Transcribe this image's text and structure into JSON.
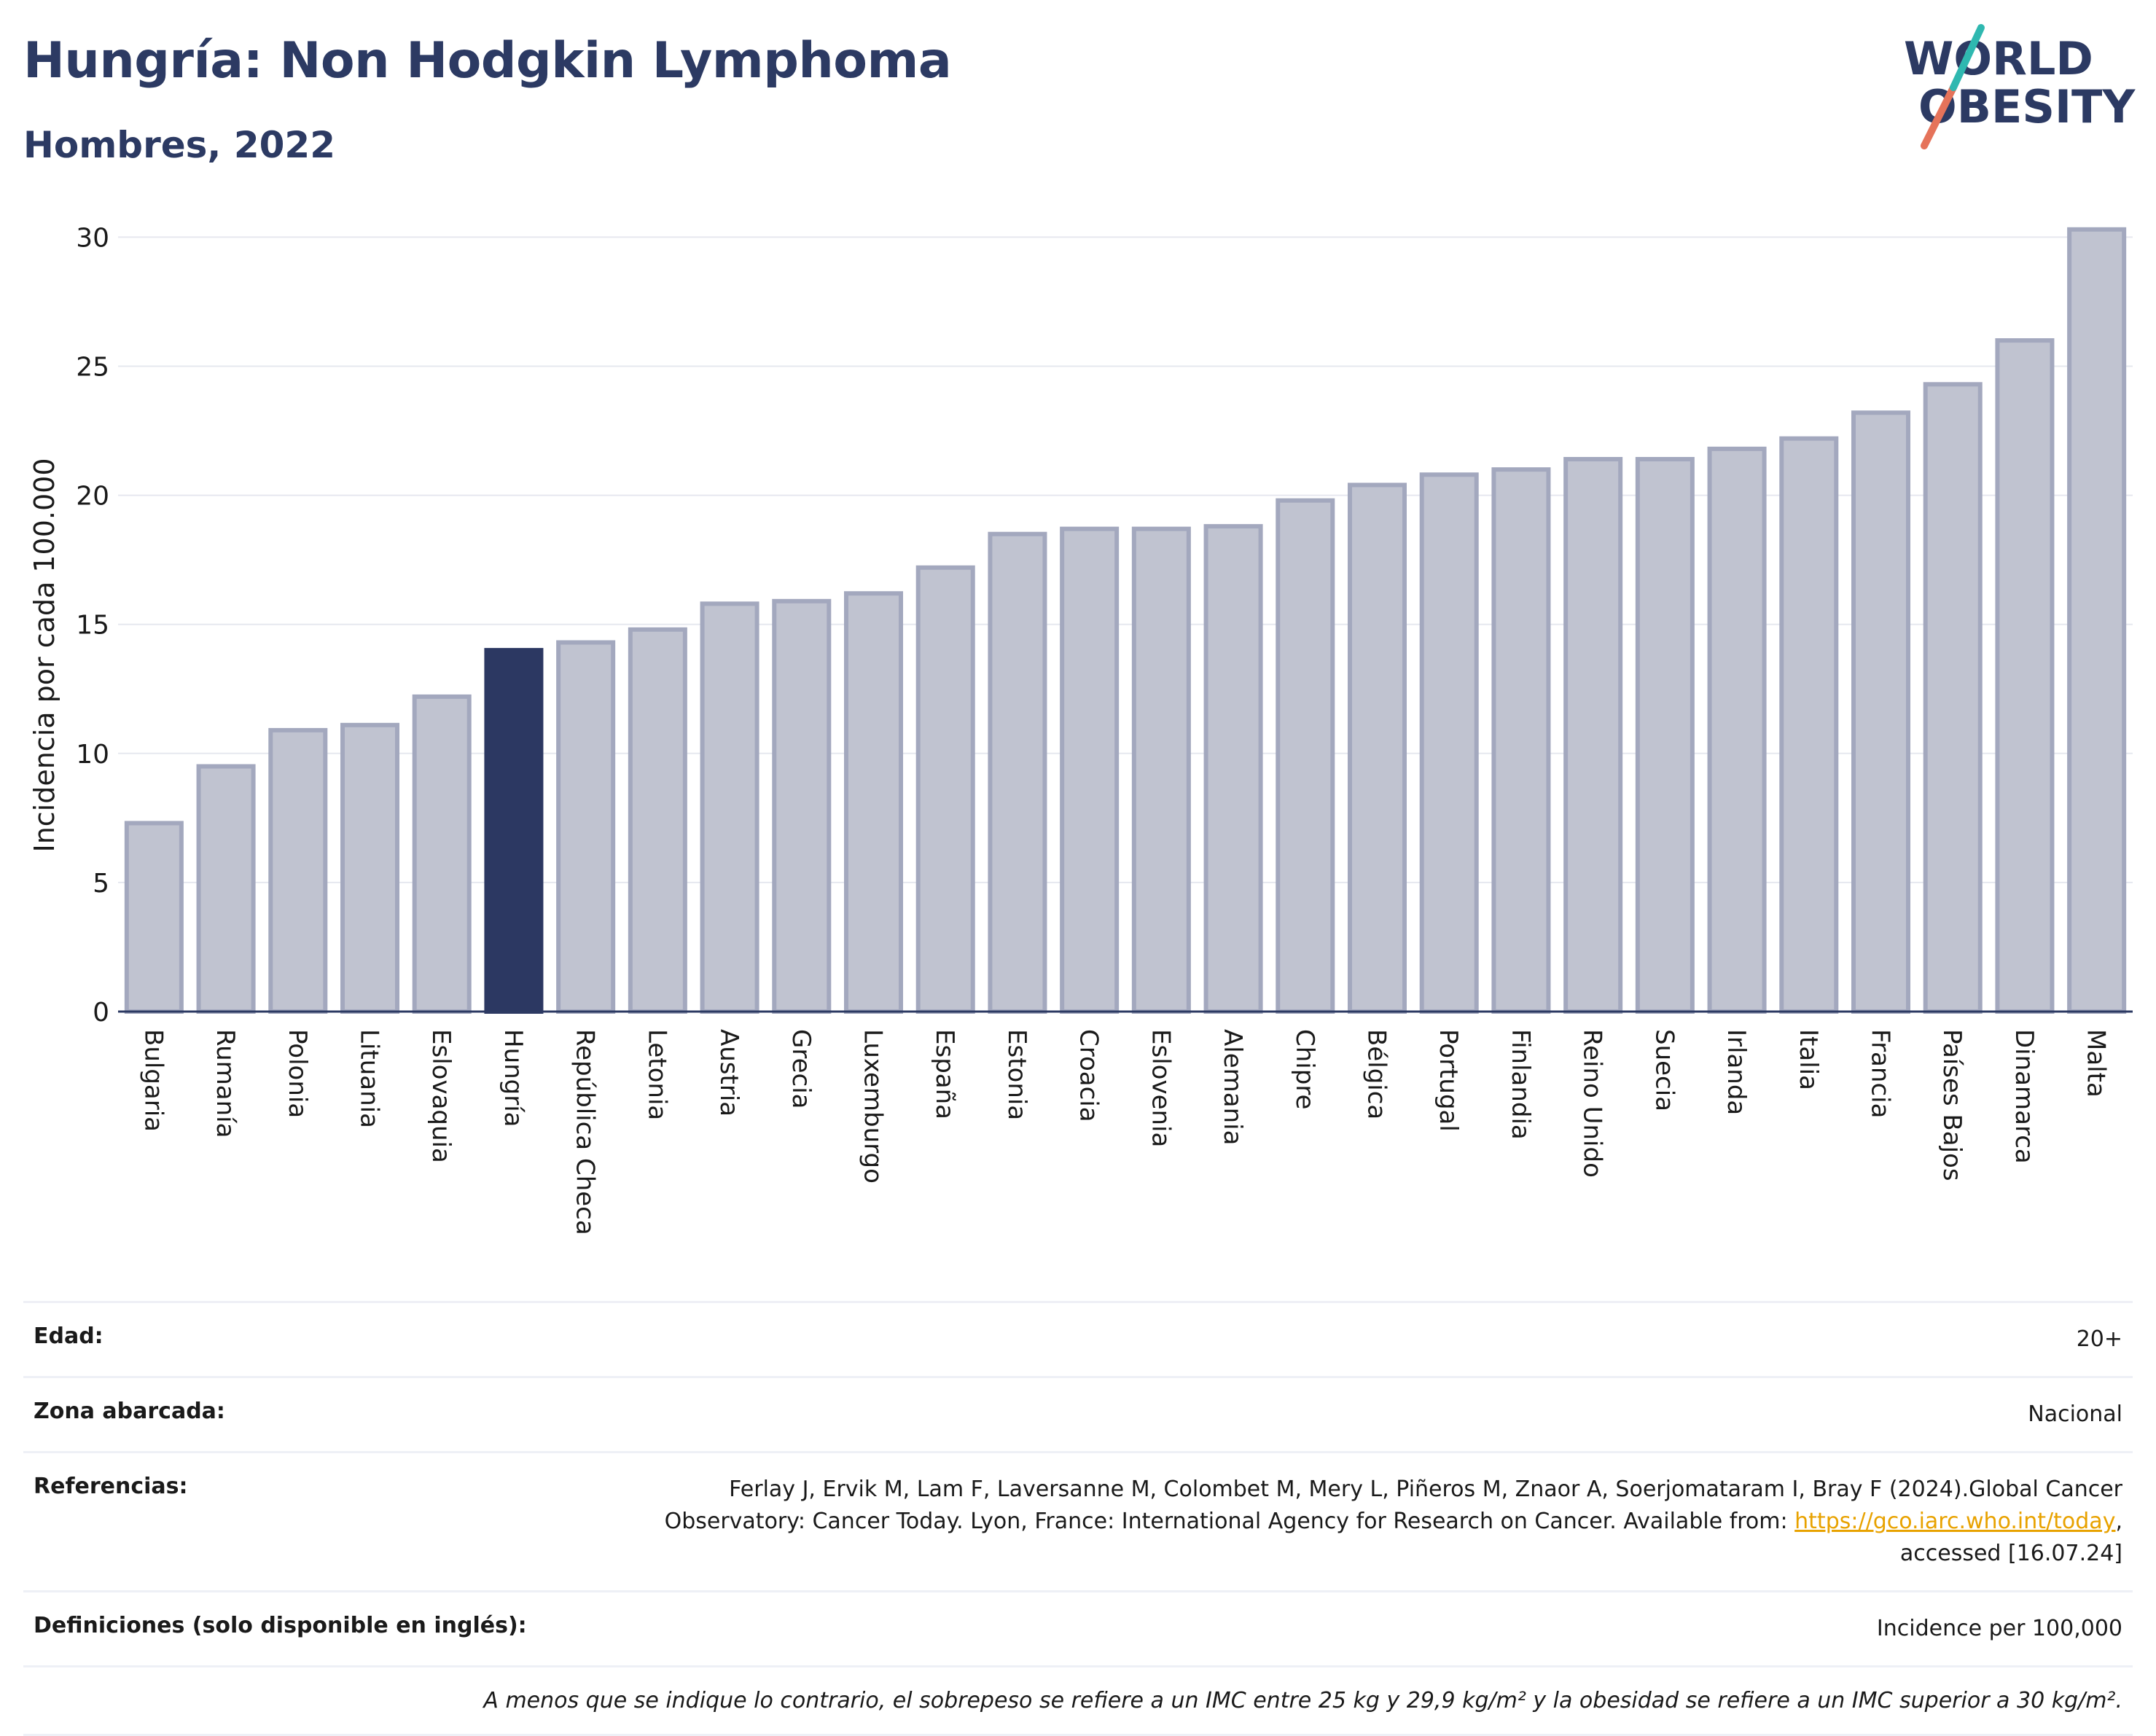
{
  "header": {
    "title": "Hungría: Non Hodgkin Lymphoma",
    "subtitle": "Hombres, 2022"
  },
  "logo": {
    "line1": "WORLD",
    "line2": "OBESITY"
  },
  "colors": {
    "highlight": "#2c3862",
    "bar": "#c0c3d0",
    "bar_stroke": "#a3a8be",
    "title": "#2c3a63"
  },
  "chart_data": {
    "type": "bar",
    "ylabel": "Incidencia por cada 100.000",
    "ylim": [
      0,
      31
    ],
    "yticks": [
      0,
      5,
      10,
      15,
      20,
      25,
      30
    ],
    "grid": true,
    "highlight": "Hungría",
    "categories": [
      "Bulgaria",
      "Rumanía",
      "Polonia",
      "Lituania",
      "Eslovaquia",
      "Hungría",
      "República Checa",
      "Letonia",
      "Austria",
      "Grecia",
      "Luxemburgo",
      "España",
      "Estonia",
      "Croacia",
      "Eslovenia",
      "Alemania",
      "Chipre",
      "Bélgica",
      "Portugal",
      "Finlandia",
      "Reino Unido",
      "Suecia",
      "Irlanda",
      "Italia",
      "Francia",
      "Países Bajos",
      "Dinamarca",
      "Malta"
    ],
    "values": [
      7.3,
      9.5,
      10.9,
      11.1,
      12.2,
      14.0,
      14.3,
      14.8,
      15.8,
      15.9,
      16.2,
      17.2,
      18.5,
      18.7,
      18.7,
      18.8,
      19.8,
      20.4,
      20.8,
      21.0,
      21.4,
      21.4,
      21.8,
      22.2,
      23.2,
      24.3,
      26.0,
      30.3
    ]
  },
  "info_table": {
    "age_label": "Edad:",
    "age_value": "20+",
    "area_label": "Zona abarcada:",
    "area_value": "Nacional",
    "ref_label": "Referencias:",
    "ref_text_1": "Ferlay J, Ervik M, Lam F, Laversanne M, Colombet M, Mery L, Piñeros M, Znaor A, Soerjomataram I, Bray F (2024).Global Cancer Observatory: Cancer Today. Lyon, France: International Agency for Research on Cancer. Available from: ",
    "ref_link": "https://gco.iarc.who.int/today",
    "ref_text_2": ", accessed [16.07.24]",
    "def_label": "Definiciones (solo disponible en inglés):",
    "def_value": "Incidence per 100,000",
    "footnote": "A menos que se indique lo contrario, el sobrepeso se refiere a un IMC entre 25 kg y 29,9 kg/m² y la obesidad se refiere a un IMC superior a 30 kg/m²."
  }
}
